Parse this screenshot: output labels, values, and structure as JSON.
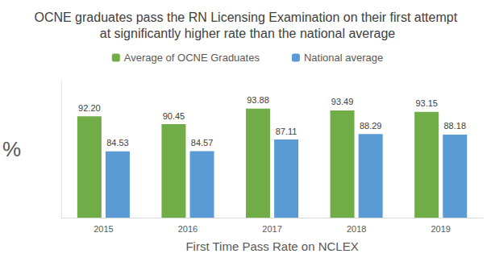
{
  "chart_data": {
    "type": "bar",
    "title": "OCNE graduates pass the RN Licensing Examination on their first attempt at significantly higher rate than the national average",
    "x_label": "First Time Pass Rate on NCLEX",
    "y_label": "%",
    "categories": [
      "2015",
      "2016",
      "2017",
      "2018",
      "2019"
    ],
    "series": [
      {
        "name": "Average of OCNE Graduates",
        "color": "#70ad47",
        "values": [
          92.2,
          90.45,
          93.88,
          93.49,
          93.15
        ],
        "value_labels": [
          "92.20",
          "90.45",
          "93.88",
          "93.49",
          "93.15"
        ]
      },
      {
        "name": "National average",
        "color": "#5b9bd5",
        "values": [
          84.53,
          84.57,
          87.11,
          88.29,
          88.18
        ],
        "value_labels": [
          "84.53",
          "84.57",
          "87.11",
          "88.29",
          "88.18"
        ]
      }
    ],
    "ylim": [
      70,
      100
    ],
    "grid": false,
    "legend": "top",
    "data_labels": true,
    "tick_labels": "x"
  }
}
